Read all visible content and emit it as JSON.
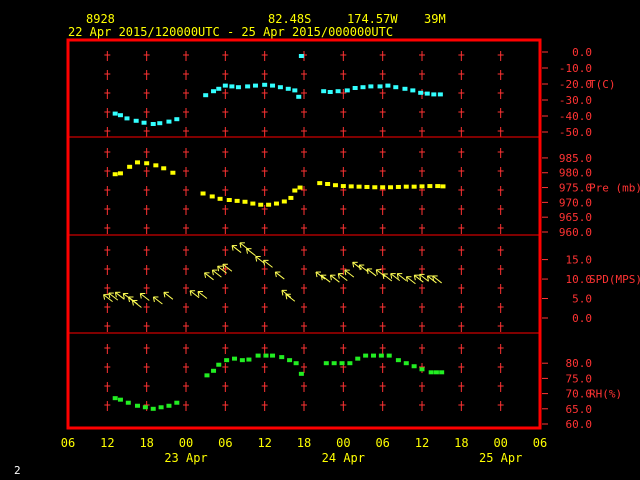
{
  "header": {
    "station_id": "8928",
    "latitude": "82.48S",
    "longitude": "174.57W",
    "elevation": "39M",
    "time_range": "22 Apr 2015/120000UTC - 25 Apr 2015/000000UTC"
  },
  "corner_label": "2",
  "colors": {
    "frame": "#ff0000",
    "cross": "#ff3333",
    "tick_text": "#ff3333",
    "axis_text": "#ffff00",
    "temperature": "#33ffff",
    "pressure": "#ffff00",
    "wind": "#ffff55",
    "humidity": "#22ee22"
  },
  "chart_data": {
    "type": "scatter",
    "x_unit": "hours from 22 Apr 2015 06 UTC",
    "x_ticks": [
      "06",
      "12",
      "18",
      "00",
      "06",
      "12",
      "18",
      "00",
      "06",
      "12",
      "18",
      "00",
      "06"
    ],
    "x_date_labels": [
      {
        "label": "23 Apr",
        "at": 18
      },
      {
        "label": "24 Apr",
        "at": 42
      },
      {
        "label": "25 Apr",
        "at": 66
      }
    ],
    "xlim": [
      0,
      72
    ],
    "panels": [
      {
        "key": "temperature",
        "label": "T(C)",
        "ylim": [
          -50,
          0
        ],
        "ticks": [
          "0.0",
          "-10.0",
          "-20.0",
          "-30.0",
          "-40.0",
          "-50.0"
        ],
        "tick_values": [
          0,
          -10,
          -20,
          -30,
          -40,
          -50
        ],
        "marker": "square",
        "points": [
          [
            7.2,
            -38.5
          ],
          [
            8.0,
            -39.5
          ],
          [
            9.0,
            -41.5
          ],
          [
            10.4,
            -43.0
          ],
          [
            11.6,
            -44.2
          ],
          [
            13.0,
            -45.0
          ],
          [
            14.0,
            -44.5
          ],
          [
            15.4,
            -43.5
          ],
          [
            16.6,
            -42.0
          ],
          [
            21.0,
            -27.0
          ],
          [
            22.2,
            -24.5
          ],
          [
            23.0,
            -23.0
          ],
          [
            24.0,
            -21.0
          ],
          [
            25.0,
            -21.5
          ],
          [
            26.0,
            -22.0
          ],
          [
            27.4,
            -21.5
          ],
          [
            28.6,
            -21.0
          ],
          [
            30.0,
            -20.5
          ],
          [
            31.2,
            -21.0
          ],
          [
            32.4,
            -22.0
          ],
          [
            33.6,
            -23.0
          ],
          [
            34.6,
            -24.0
          ],
          [
            35.2,
            -28.0
          ],
          [
            35.6,
            -2.5
          ],
          [
            39.0,
            -24.5
          ],
          [
            40.0,
            -25.0
          ],
          [
            41.2,
            -24.5
          ],
          [
            42.6,
            -24.0
          ],
          [
            43.8,
            -22.5
          ],
          [
            45.0,
            -22.0
          ],
          [
            46.2,
            -21.5
          ],
          [
            47.6,
            -21.5
          ],
          [
            48.8,
            -21.0
          ],
          [
            50.0,
            -22.0
          ],
          [
            51.4,
            -23.0
          ],
          [
            52.6,
            -24.0
          ],
          [
            53.8,
            -25.5
          ],
          [
            54.8,
            -26.0
          ],
          [
            55.8,
            -26.5
          ],
          [
            56.8,
            -26.5
          ]
        ]
      },
      {
        "key": "pressure",
        "label": "Pre (mb)",
        "ylim": [
          960,
          987
        ],
        "ticks": [
          "985.0",
          "980.0",
          "975.0",
          "970.0",
          "965.0",
          "960.0"
        ],
        "tick_values": [
          985,
          980,
          975,
          970,
          965,
          960
        ],
        "marker": "square",
        "points": [
          [
            7.2,
            979.5
          ],
          [
            8.0,
            979.8
          ],
          [
            9.4,
            982.0
          ],
          [
            10.6,
            983.5
          ],
          [
            12.0,
            983.2
          ],
          [
            13.4,
            982.5
          ],
          [
            14.6,
            981.5
          ],
          [
            16.0,
            980.0
          ],
          [
            20.6,
            973.0
          ],
          [
            22.0,
            972.0
          ],
          [
            23.2,
            971.2
          ],
          [
            24.6,
            970.8
          ],
          [
            25.8,
            970.5
          ],
          [
            27.0,
            970.2
          ],
          [
            28.2,
            969.6
          ],
          [
            29.4,
            969.2
          ],
          [
            30.6,
            969.2
          ],
          [
            31.8,
            969.6
          ],
          [
            33.0,
            970.3
          ],
          [
            34.0,
            971.5
          ],
          [
            34.6,
            974.0
          ],
          [
            35.4,
            975.0
          ],
          [
            38.4,
            976.5
          ],
          [
            39.6,
            976.2
          ],
          [
            40.8,
            975.8
          ],
          [
            42.0,
            975.5
          ],
          [
            43.2,
            975.4
          ],
          [
            44.4,
            975.3
          ],
          [
            45.6,
            975.2
          ],
          [
            46.8,
            975.1
          ],
          [
            48.0,
            975.1
          ],
          [
            49.2,
            975.1
          ],
          [
            50.4,
            975.2
          ],
          [
            51.6,
            975.3
          ],
          [
            52.8,
            975.3
          ],
          [
            54.0,
            975.4
          ],
          [
            55.2,
            975.5
          ],
          [
            56.4,
            975.5
          ],
          [
            57.2,
            975.4
          ]
        ]
      },
      {
        "key": "wind",
        "label": "SPD(MPS)",
        "ylim": [
          0,
          19
        ],
        "ticks": [
          "15.0",
          "10.0",
          "5.0",
          "0.0"
        ],
        "tick_values": [
          15,
          10,
          5,
          0
        ],
        "marker": "arrow",
        "arrow_direction_deg": 135,
        "points": [
          [
            6.8,
            4.2
          ],
          [
            7.6,
            4.6
          ],
          [
            8.6,
            4.8
          ],
          [
            9.8,
            4.5
          ],
          [
            10.6,
            3.6
          ],
          [
            11.2,
            2.7
          ],
          [
            12.4,
            4.5
          ],
          [
            14.4,
            3.6
          ],
          [
            16.0,
            4.8
          ],
          [
            20.0,
            5.2
          ],
          [
            21.2,
            5.0
          ],
          [
            22.2,
            9.8
          ],
          [
            23.4,
            10.5
          ],
          [
            24.2,
            11.5
          ],
          [
            25.0,
            12.0
          ],
          [
            26.4,
            16.8
          ],
          [
            27.6,
            17.5
          ],
          [
            28.6,
            16.0
          ],
          [
            30.0,
            14.0
          ],
          [
            31.2,
            13.0
          ],
          [
            33.0,
            10.0
          ],
          [
            34.0,
            5.3
          ],
          [
            34.6,
            4.3
          ],
          [
            39.2,
            10.0
          ],
          [
            40.0,
            9.2
          ],
          [
            41.4,
            9.2
          ],
          [
            42.6,
            9.6
          ],
          [
            43.6,
            10.5
          ],
          [
            44.8,
            12.5
          ],
          [
            45.8,
            11.8
          ],
          [
            47.0,
            10.8
          ],
          [
            48.4,
            10.6
          ],
          [
            49.4,
            9.5
          ],
          [
            50.6,
            9.6
          ],
          [
            51.6,
            9.6
          ],
          [
            53.0,
            8.8
          ],
          [
            54.2,
            9.2
          ],
          [
            55.0,
            9.4
          ],
          [
            56.2,
            9.0
          ],
          [
            57.0,
            9.0
          ]
        ]
      },
      {
        "key": "humidity",
        "label": "RH(%)",
        "ylim": [
          60,
          85
        ],
        "ticks": [
          "80.0",
          "75.0",
          "70.0",
          "65.0",
          "60.0"
        ],
        "tick_values": [
          80,
          75,
          70,
          65,
          60
        ],
        "marker": "square",
        "points": [
          [
            7.2,
            68.5
          ],
          [
            8.0,
            68.0
          ],
          [
            9.2,
            67.0
          ],
          [
            10.6,
            66.0
          ],
          [
            11.8,
            65.5
          ],
          [
            13.0,
            65.0
          ],
          [
            14.2,
            65.5
          ],
          [
            15.4,
            66.0
          ],
          [
            16.6,
            67.0
          ],
          [
            21.2,
            76.0
          ],
          [
            22.2,
            77.5
          ],
          [
            23.0,
            79.5
          ],
          [
            24.2,
            81.0
          ],
          [
            25.4,
            81.5
          ],
          [
            26.6,
            81.0
          ],
          [
            27.6,
            81.2
          ],
          [
            29.0,
            82.5
          ],
          [
            30.2,
            82.5
          ],
          [
            31.2,
            82.5
          ],
          [
            32.6,
            82.0
          ],
          [
            33.8,
            81.0
          ],
          [
            34.8,
            80.0
          ],
          [
            35.6,
            76.5
          ],
          [
            39.4,
            80.0
          ],
          [
            40.6,
            80.0
          ],
          [
            41.8,
            80.0
          ],
          [
            43.0,
            80.0
          ],
          [
            44.2,
            81.5
          ],
          [
            45.4,
            82.5
          ],
          [
            46.6,
            82.5
          ],
          [
            47.8,
            82.5
          ],
          [
            49.0,
            82.5
          ],
          [
            50.4,
            81.0
          ],
          [
            51.6,
            80.0
          ],
          [
            52.8,
            79.0
          ],
          [
            54.0,
            78.0
          ],
          [
            55.4,
            77.0
          ],
          [
            56.2,
            77.0
          ],
          [
            57.0,
            77.0
          ]
        ]
      }
    ]
  }
}
